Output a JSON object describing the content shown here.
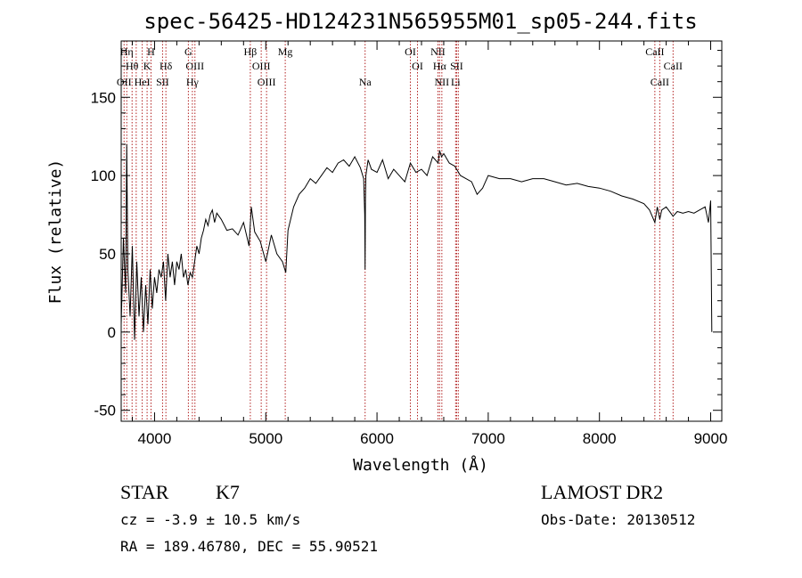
{
  "chart_data": {
    "type": "line",
    "title": "spec-56425-HD124231N565955M01_sp05-244.fits",
    "xlabel": "Wavelength (Å)",
    "ylabel": "Flux (relative)",
    "xlim": [
      3700,
      9100
    ],
    "ylim": [
      -57,
      186
    ],
    "xticks": [
      4000,
      5000,
      6000,
      7000,
      8000,
      9000
    ],
    "yticks": [
      -50,
      0,
      50,
      100,
      150
    ],
    "grid": false,
    "line_color": "#000000",
    "marker_color": "#b22222",
    "series": [
      {
        "x": [
          3700,
          3720,
          3740,
          3750,
          3760,
          3780,
          3800,
          3820,
          3840,
          3860,
          3880,
          3900,
          3920,
          3940,
          3960,
          3980,
          4000,
          4020,
          4040,
          4060,
          4080,
          4100,
          4120,
          4140,
          4160,
          4180,
          4200,
          4220,
          4240,
          4260,
          4280,
          4300,
          4320,
          4340,
          4360,
          4380,
          4400,
          4420,
          4440,
          4460,
          4480,
          4500,
          4520,
          4540,
          4560,
          4580,
          4600,
          4650,
          4700,
          4750,
          4800,
          4850,
          4870,
          4900,
          4950,
          5000,
          5050,
          5100,
          5150,
          5180,
          5200,
          5250,
          5300,
          5350,
          5400,
          5450,
          5500,
          5550,
          5600,
          5650,
          5700,
          5750,
          5800,
          5850,
          5880,
          5890,
          5893,
          5896,
          5900,
          5920,
          5950,
          6000,
          6050,
          6100,
          6150,
          6200,
          6250,
          6300,
          6350,
          6400,
          6450,
          6500,
          6550,
          6563,
          6580,
          6600,
          6650,
          6700,
          6750,
          6800,
          6850,
          6900,
          6950,
          7000,
          7100,
          7200,
          7300,
          7400,
          7500,
          7600,
          7700,
          7800,
          7900,
          8000,
          8100,
          8200,
          8300,
          8400,
          8450,
          8498,
          8520,
          8542,
          8560,
          8600,
          8662,
          8700,
          8750,
          8800,
          8850,
          8900,
          8950,
          8980,
          9000,
          9010
        ],
        "y": [
          5,
          60,
          25,
          120,
          40,
          10,
          55,
          -5,
          45,
          10,
          35,
          0,
          30,
          5,
          40,
          15,
          35,
          25,
          40,
          35,
          45,
          20,
          50,
          35,
          45,
          30,
          45,
          40,
          50,
          35,
          40,
          30,
          38,
          35,
          45,
          55,
          50,
          60,
          65,
          72,
          68,
          75,
          78,
          70,
          76,
          74,
          72,
          65,
          66,
          62,
          70,
          55,
          80,
          64,
          58,
          45,
          62,
          50,
          45,
          38,
          65,
          80,
          88,
          92,
          98,
          95,
          100,
          105,
          102,
          108,
          110,
          106,
          112,
          105,
          98,
          75,
          40,
          85,
          100,
          110,
          104,
          102,
          110,
          98,
          104,
          100,
          96,
          108,
          102,
          104,
          100,
          112,
          108,
          116,
          112,
          114,
          108,
          106,
          100,
          98,
          96,
          88,
          92,
          100,
          98,
          98,
          96,
          98,
          98,
          96,
          94,
          95,
          93,
          92,
          90,
          87,
          85,
          82,
          78,
          70,
          80,
          72,
          78,
          80,
          74,
          77,
          76,
          77,
          76,
          78,
          80,
          70,
          84,
          0
        ]
      }
    ],
    "line_markers": [
      {
        "x": 3726,
        "name": "OII",
        "row": 3
      },
      {
        "x": 3750,
        "name": "Hη",
        "row": 1
      },
      {
        "x": 3798,
        "name": "Hθ",
        "row": 2
      },
      {
        "x": 3835,
        "name": "",
        "row": 0
      },
      {
        "x": 3889,
        "name": "HeI",
        "row": 3
      },
      {
        "x": 3933,
        "name": "K",
        "row": 2
      },
      {
        "x": 3968,
        "name": "H",
        "row": 1
      },
      {
        "x": 4072,
        "name": "SII",
        "row": 3
      },
      {
        "x": 4102,
        "name": "Hδ",
        "row": 2
      },
      {
        "x": 4304,
        "name": "G",
        "row": 1
      },
      {
        "x": 4340,
        "name": "Hγ",
        "row": 3
      },
      {
        "x": 4363,
        "name": "OIII",
        "row": 2
      },
      {
        "x": 4861,
        "name": "Hβ",
        "row": 1
      },
      {
        "x": 4959,
        "name": "OIII",
        "row": 2
      },
      {
        "x": 5007,
        "name": "OIII",
        "row": 3
      },
      {
        "x": 5175,
        "name": "Mg",
        "row": 1
      },
      {
        "x": 5893,
        "name": "Na",
        "row": 3
      },
      {
        "x": 6300,
        "name": "OI",
        "row": 1
      },
      {
        "x": 6364,
        "name": "OI",
        "row": 2
      },
      {
        "x": 6548,
        "name": "NII",
        "row": 1
      },
      {
        "x": 6563,
        "name": "Hα",
        "row": 2
      },
      {
        "x": 6583,
        "name": "NII",
        "row": 3
      },
      {
        "x": 6707,
        "name": "Li",
        "row": 3
      },
      {
        "x": 6716,
        "name": "SII",
        "row": 2
      },
      {
        "x": 6731,
        "name": "",
        "row": 0
      },
      {
        "x": 8498,
        "name": "CaII",
        "row": 1
      },
      {
        "x": 8542,
        "name": "CaII",
        "row": 3
      },
      {
        "x": 8662,
        "name": "CaII",
        "row": 2
      }
    ]
  },
  "info": {
    "class": "STAR",
    "subclass": "K7",
    "survey": "LAMOST DR2",
    "cz": "cz = -3.9 ± 10.5 km/s",
    "obs_date": "Obs-Date: 20130512",
    "coords": "RA = 189.46780, DEC =  55.90521"
  }
}
